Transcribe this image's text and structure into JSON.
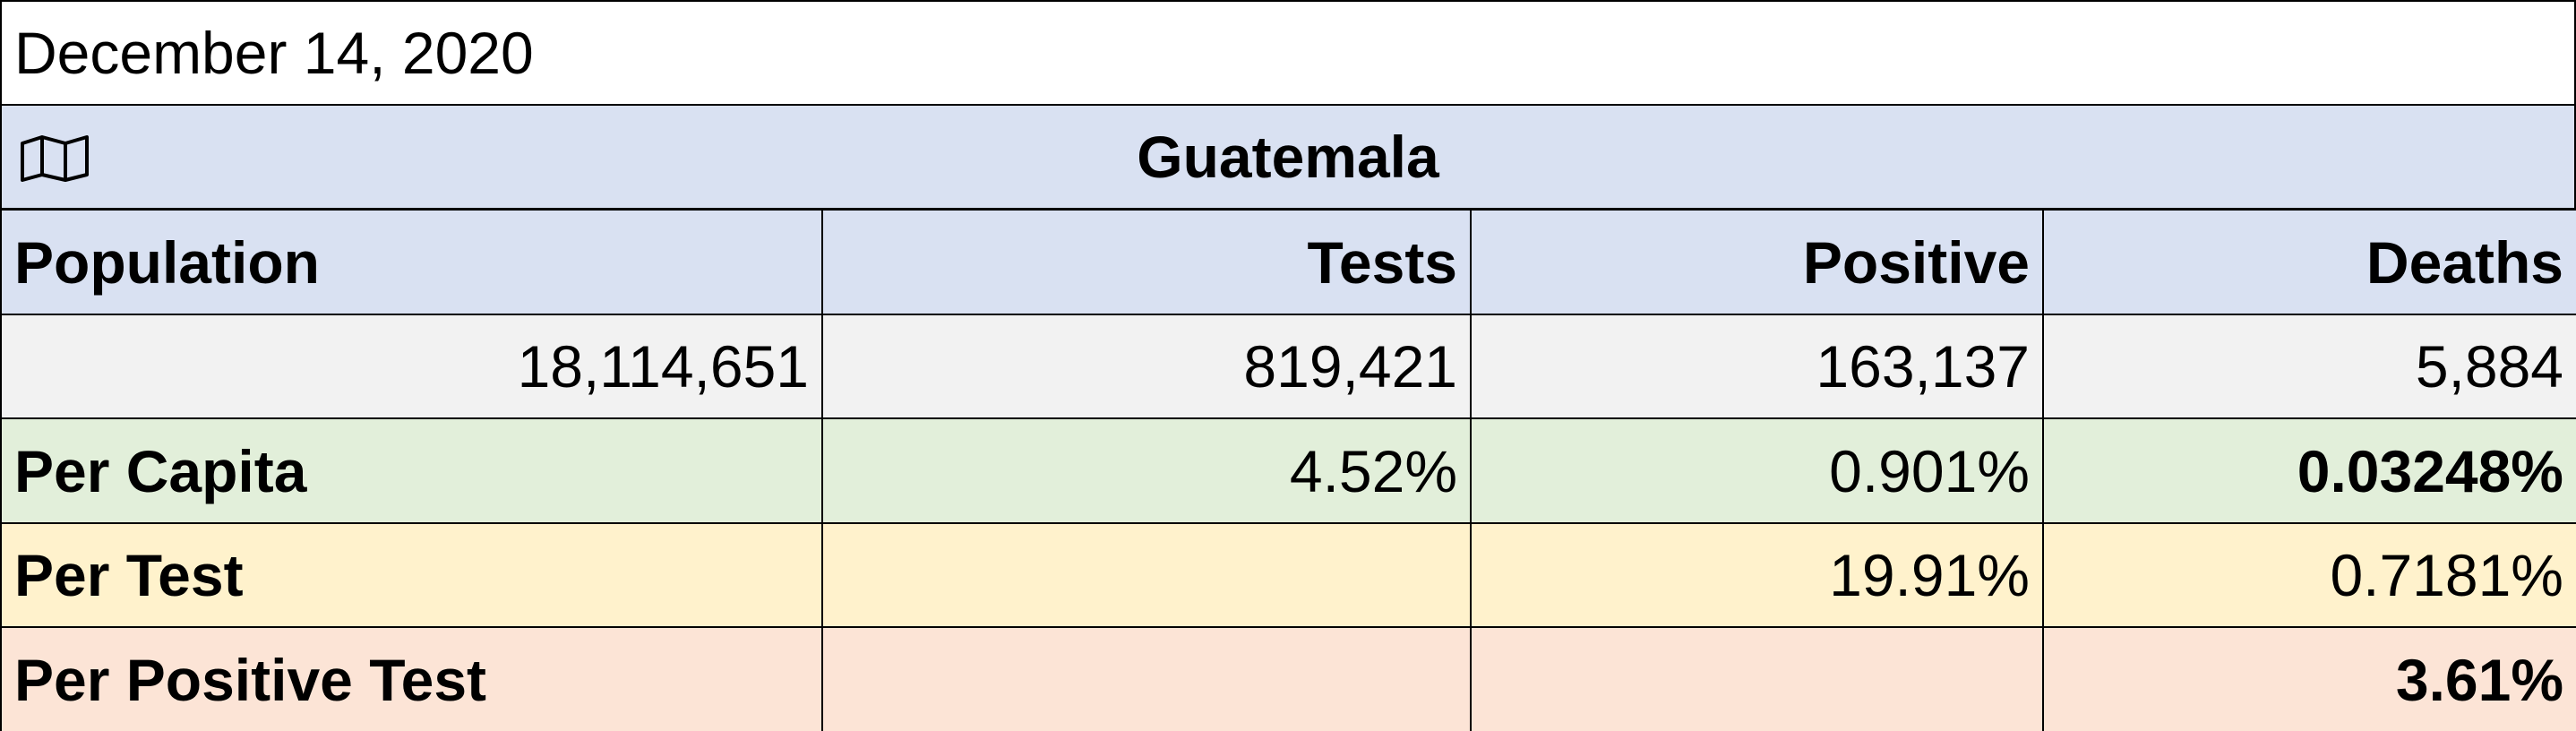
{
  "date": "December 14, 2020",
  "country": "Guatemala",
  "table": {
    "header": [
      "Population",
      "Tests",
      "Positive",
      "Deaths"
    ],
    "counts": [
      "18,114,651",
      "819,421",
      "163,137",
      "5,884"
    ],
    "per_capita": {
      "label": "Per Capita",
      "tests": "4.52%",
      "positive": "0.901%",
      "deaths": "0.03248%"
    },
    "per_test": {
      "label": "Per Test",
      "positive": "19.91%",
      "deaths": "0.7181%"
    },
    "per_positive_test": {
      "label": "Per Positive Test",
      "deaths": "3.61%"
    }
  }
}
